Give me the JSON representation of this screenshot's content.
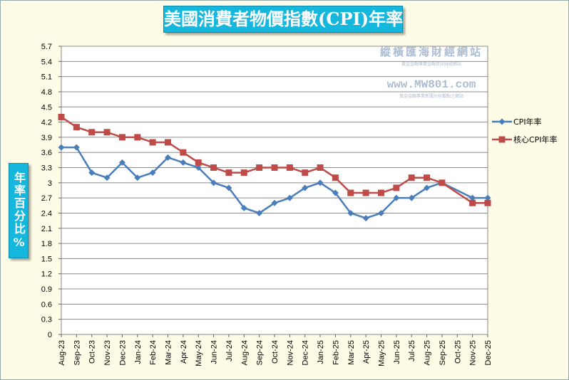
{
  "chart_data": {
    "type": "line",
    "title": "美國消費者物價指數(CPI)年率",
    "ylabel": "年率百分比%",
    "xlabel": "",
    "ylim": [
      0,
      5.7
    ],
    "yticks": [
      "0",
      "0.3",
      "0.6",
      "0.9",
      "1.2",
      "1.5",
      "1.8",
      "2.1",
      "2.4",
      "2.7",
      "3",
      "3.3",
      "3.6",
      "3.9",
      "4.2",
      "4.5",
      "4.8",
      "5.1",
      "5.4",
      "5.7"
    ],
    "grid": true,
    "legend_position": "right",
    "categories": [
      "Aug-23",
      "Sep-23",
      "Oct-23",
      "Nov-23",
      "Dec-23",
      "Jan-24",
      "Feb-24",
      "Mar-24",
      "Apr-24",
      "May-24",
      "Jun-24",
      "Jul-24",
      "Aug-24",
      "Sep-24",
      "Oct-24",
      "Nov-24",
      "Dec-24",
      "Jan-25",
      "Feb-25",
      "Mar-25",
      "Apr-25",
      "May-25",
      "Jun-25",
      "Jul-25",
      "Aug-25",
      "Sep-25",
      "Oct-25",
      "Nov-25",
      "Dec-25"
    ],
    "series": [
      {
        "name": "CPI年率",
        "color": "#4a7ebb",
        "marker": "diamond",
        "values": [
          3.7,
          3.7,
          3.2,
          3.1,
          3.4,
          3.1,
          3.2,
          3.5,
          3.4,
          3.3,
          3.0,
          2.9,
          2.5,
          2.4,
          2.6,
          2.7,
          2.9,
          3.0,
          2.8,
          2.4,
          2.3,
          2.4,
          2.7,
          2.7,
          2.9,
          3.0,
          null,
          2.7,
          2.7
        ]
      },
      {
        "name": "核心CPI年率",
        "color": "#be4b48",
        "marker": "square",
        "values": [
          4.3,
          4.1,
          4.0,
          4.0,
          3.9,
          3.9,
          3.8,
          3.8,
          3.6,
          3.4,
          3.3,
          3.2,
          3.2,
          3.3,
          3.3,
          3.3,
          3.2,
          3.3,
          3.1,
          2.8,
          2.8,
          2.8,
          2.9,
          3.1,
          3.1,
          3.0,
          null,
          2.6,
          2.6
        ]
      }
    ]
  },
  "watermark": {
    "line1": "縱橫匯海財經網站",
    "line2": "黃金金融專業金融資訊財經網站",
    "line3": "www.MW801.com",
    "line4": "黃金金融專業新聞分析觀點之網站"
  }
}
